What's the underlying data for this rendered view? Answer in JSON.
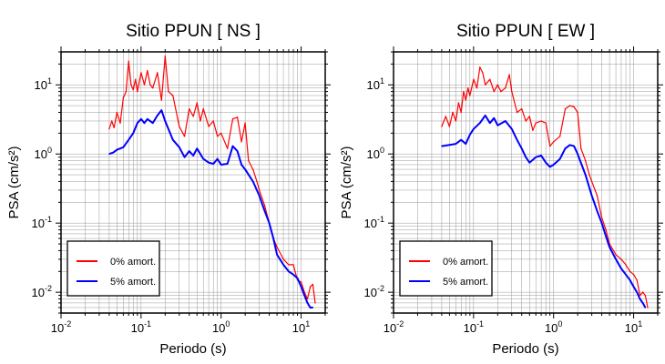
{
  "chart_data": [
    {
      "type": "line",
      "title": "Sitio PPUN [ NS ]",
      "xlabel": "Periodo (s)",
      "ylabel": "PSA (cm/s²)",
      "xscale": "log",
      "yscale": "log",
      "xlim": [
        0.01,
        20
      ],
      "ylim": [
        0.005,
        30
      ],
      "x_ticks": [
        {
          "v": 0.01,
          "m": "10",
          "e": "-2"
        },
        {
          "v": 0.1,
          "m": "10",
          "e": "-1"
        },
        {
          "v": 1,
          "m": "10",
          "e": "0"
        },
        {
          "v": 10,
          "m": "10",
          "e": "1"
        }
      ],
      "y_ticks": [
        {
          "v": 0.01,
          "m": "10",
          "e": "-2"
        },
        {
          "v": 0.1,
          "m": "10",
          "e": "-1"
        },
        {
          "v": 1,
          "m": "10",
          "e": "0"
        },
        {
          "v": 10,
          "m": "10",
          "e": "1"
        }
      ],
      "grid": true,
      "legend_position": "bottom-left",
      "series": [
        {
          "name": "0% amort.",
          "color": "#ff0000",
          "points": [
            [
              0.04,
              2.3
            ],
            [
              0.043,
              3.0
            ],
            [
              0.046,
              2.4
            ],
            [
              0.05,
              4.0
            ],
            [
              0.055,
              2.8
            ],
            [
              0.06,
              6.5
            ],
            [
              0.065,
              8.0
            ],
            [
              0.07,
              22.0
            ],
            [
              0.075,
              10.0
            ],
            [
              0.08,
              8.5
            ],
            [
              0.085,
              12.0
            ],
            [
              0.09,
              8.0
            ],
            [
              0.1,
              15.0
            ],
            [
              0.11,
              10.0
            ],
            [
              0.12,
              16.0
            ],
            [
              0.13,
              10.0
            ],
            [
              0.14,
              9.0
            ],
            [
              0.16,
              15.0
            ],
            [
              0.18,
              6.0
            ],
            [
              0.2,
              26.0
            ],
            [
              0.22,
              8.0
            ],
            [
              0.25,
              7.0
            ],
            [
              0.3,
              2.5
            ],
            [
              0.35,
              1.8
            ],
            [
              0.4,
              4.5
            ],
            [
              0.45,
              3.5
            ],
            [
              0.5,
              5.5
            ],
            [
              0.55,
              3.0
            ],
            [
              0.6,
              4.5
            ],
            [
              0.7,
              2.5
            ],
            [
              0.8,
              3.0
            ],
            [
              0.9,
              1.8
            ],
            [
              1.0,
              2.0
            ],
            [
              1.2,
              1.2
            ],
            [
              1.4,
              3.2
            ],
            [
              1.6,
              3.4
            ],
            [
              1.8,
              1.5
            ],
            [
              2.0,
              2.8
            ],
            [
              2.2,
              0.8
            ],
            [
              2.5,
              0.6
            ],
            [
              2.8,
              0.4
            ],
            [
              3.0,
              0.3
            ],
            [
              3.5,
              0.18
            ],
            [
              4.0,
              0.1
            ],
            [
              4.5,
              0.06
            ],
            [
              5.0,
              0.045
            ],
            [
              6.0,
              0.03
            ],
            [
              7.0,
              0.025
            ],
            [
              8.0,
              0.025
            ],
            [
              9.0,
              0.015
            ],
            [
              10.0,
              0.014
            ],
            [
              11.0,
              0.01
            ],
            [
              12.0,
              0.008
            ],
            [
              13.0,
              0.012
            ],
            [
              14.0,
              0.013
            ],
            [
              15.0,
              0.007
            ]
          ]
        },
        {
          "name": "5% amort.",
          "color": "#0000ff",
          "points": [
            [
              0.04,
              1.0
            ],
            [
              0.045,
              1.05
            ],
            [
              0.05,
              1.15
            ],
            [
              0.06,
              1.25
            ],
            [
              0.07,
              1.6
            ],
            [
              0.08,
              2.0
            ],
            [
              0.09,
              2.8
            ],
            [
              0.1,
              3.2
            ],
            [
              0.11,
              2.8
            ],
            [
              0.12,
              3.2
            ],
            [
              0.14,
              2.8
            ],
            [
              0.16,
              3.6
            ],
            [
              0.18,
              4.3
            ],
            [
              0.2,
              3.0
            ],
            [
              0.25,
              1.6
            ],
            [
              0.3,
              1.25
            ],
            [
              0.35,
              0.9
            ],
            [
              0.4,
              1.1
            ],
            [
              0.45,
              0.95
            ],
            [
              0.5,
              1.2
            ],
            [
              0.6,
              0.85
            ],
            [
              0.7,
              0.75
            ],
            [
              0.8,
              0.72
            ],
            [
              0.9,
              0.85
            ],
            [
              1.0,
              0.7
            ],
            [
              1.2,
              0.72
            ],
            [
              1.4,
              1.3
            ],
            [
              1.6,
              1.1
            ],
            [
              1.8,
              0.7
            ],
            [
              2.0,
              0.6
            ],
            [
              2.5,
              0.4
            ],
            [
              3.0,
              0.25
            ],
            [
              3.5,
              0.15
            ],
            [
              4.0,
              0.1
            ],
            [
              4.5,
              0.06
            ],
            [
              5.0,
              0.035
            ],
            [
              6.0,
              0.025
            ],
            [
              7.0,
              0.02
            ],
            [
              8.0,
              0.018
            ],
            [
              9.0,
              0.016
            ],
            [
              10.0,
              0.012
            ],
            [
              11.0,
              0.009
            ],
            [
              12.0,
              0.007
            ],
            [
              13.0,
              0.006
            ],
            [
              14.0,
              0.006
            ]
          ]
        }
      ]
    },
    {
      "type": "line",
      "title": "Sitio PPUN [ EW ]",
      "xlabel": "Periodo (s)",
      "ylabel": "PSA (cm/s²)",
      "xscale": "log",
      "yscale": "log",
      "xlim": [
        0.01,
        20
      ],
      "ylim": [
        0.005,
        30
      ],
      "x_ticks": [
        {
          "v": 0.01,
          "m": "10",
          "e": "-2"
        },
        {
          "v": 0.1,
          "m": "10",
          "e": "-1"
        },
        {
          "v": 1,
          "m": "10",
          "e": "0"
        },
        {
          "v": 10,
          "m": "10",
          "e": "1"
        }
      ],
      "y_ticks": [
        {
          "v": 0.01,
          "m": "10",
          "e": "-2"
        },
        {
          "v": 0.1,
          "m": "10",
          "e": "-1"
        },
        {
          "v": 1,
          "m": "10",
          "e": "0"
        },
        {
          "v": 10,
          "m": "10",
          "e": "1"
        }
      ],
      "grid": true,
      "legend_position": "bottom-left",
      "series": [
        {
          "name": "0% amort.",
          "color": "#ff0000",
          "points": [
            [
              0.04,
              2.5
            ],
            [
              0.045,
              3.5
            ],
            [
              0.05,
              2.5
            ],
            [
              0.055,
              4.0
            ],
            [
              0.06,
              3.0
            ],
            [
              0.065,
              5.5
            ],
            [
              0.07,
              4.0
            ],
            [
              0.075,
              8.0
            ],
            [
              0.08,
              6.0
            ],
            [
              0.085,
              9.0
            ],
            [
              0.09,
              7.0
            ],
            [
              0.1,
              12.0
            ],
            [
              0.11,
              9.0
            ],
            [
              0.12,
              18.0
            ],
            [
              0.13,
              15.0
            ],
            [
              0.14,
              10.0
            ],
            [
              0.16,
              12.0
            ],
            [
              0.18,
              8.0
            ],
            [
              0.2,
              10.0
            ],
            [
              0.22,
              8.0
            ],
            [
              0.25,
              9.0
            ],
            [
              0.28,
              14.0
            ],
            [
              0.3,
              8.0
            ],
            [
              0.35,
              4.0
            ],
            [
              0.4,
              4.5
            ],
            [
              0.45,
              3.0
            ],
            [
              0.5,
              3.5
            ],
            [
              0.55,
              2.2
            ],
            [
              0.6,
              2.8
            ],
            [
              0.7,
              3.0
            ],
            [
              0.8,
              2.8
            ],
            [
              0.9,
              1.3
            ],
            [
              1.0,
              1.5
            ],
            [
              1.2,
              1.8
            ],
            [
              1.4,
              4.5
            ],
            [
              1.6,
              5.0
            ],
            [
              1.8,
              4.8
            ],
            [
              2.0,
              4.0
            ],
            [
              2.2,
              1.2
            ],
            [
              2.5,
              0.8
            ],
            [
              2.8,
              0.5
            ],
            [
              3.0,
              0.4
            ],
            [
              3.5,
              0.25
            ],
            [
              4.0,
              0.12
            ],
            [
              4.5,
              0.08
            ],
            [
              5.0,
              0.05
            ],
            [
              6.0,
              0.035
            ],
            [
              7.0,
              0.03
            ],
            [
              8.0,
              0.025
            ],
            [
              9.0,
              0.02
            ],
            [
              10.0,
              0.018
            ],
            [
              11.0,
              0.015
            ],
            [
              12.0,
              0.009
            ],
            [
              13.0,
              0.01
            ],
            [
              14.0,
              0.009
            ],
            [
              15.0,
              0.006
            ]
          ]
        },
        {
          "name": "5% amort.",
          "color": "#0000ff",
          "points": [
            [
              0.04,
              1.3
            ],
            [
              0.05,
              1.35
            ],
            [
              0.06,
              1.4
            ],
            [
              0.07,
              1.6
            ],
            [
              0.08,
              1.4
            ],
            [
              0.09,
              1.9
            ],
            [
              0.1,
              2.3
            ],
            [
              0.12,
              2.8
            ],
            [
              0.14,
              3.6
            ],
            [
              0.16,
              2.8
            ],
            [
              0.18,
              3.3
            ],
            [
              0.2,
              2.6
            ],
            [
              0.25,
              3.0
            ],
            [
              0.3,
              2.3
            ],
            [
              0.35,
              1.6
            ],
            [
              0.4,
              1.2
            ],
            [
              0.45,
              0.9
            ],
            [
              0.5,
              0.75
            ],
            [
              0.6,
              0.9
            ],
            [
              0.7,
              0.95
            ],
            [
              0.8,
              0.75
            ],
            [
              0.9,
              0.65
            ],
            [
              1.0,
              0.7
            ],
            [
              1.2,
              0.85
            ],
            [
              1.4,
              1.2
            ],
            [
              1.6,
              1.35
            ],
            [
              1.8,
              1.3
            ],
            [
              2.0,
              1.0
            ],
            [
              2.5,
              0.5
            ],
            [
              3.0,
              0.25
            ],
            [
              3.5,
              0.15
            ],
            [
              4.0,
              0.1
            ],
            [
              4.5,
              0.065
            ],
            [
              5.0,
              0.045
            ],
            [
              6.0,
              0.03
            ],
            [
              7.0,
              0.022
            ],
            [
              8.0,
              0.018
            ],
            [
              9.0,
              0.015
            ],
            [
              10.0,
              0.012
            ],
            [
              11.0,
              0.01
            ],
            [
              12.0,
              0.008
            ],
            [
              13.0,
              0.007
            ],
            [
              14.0,
              0.006
            ]
          ]
        }
      ]
    }
  ]
}
